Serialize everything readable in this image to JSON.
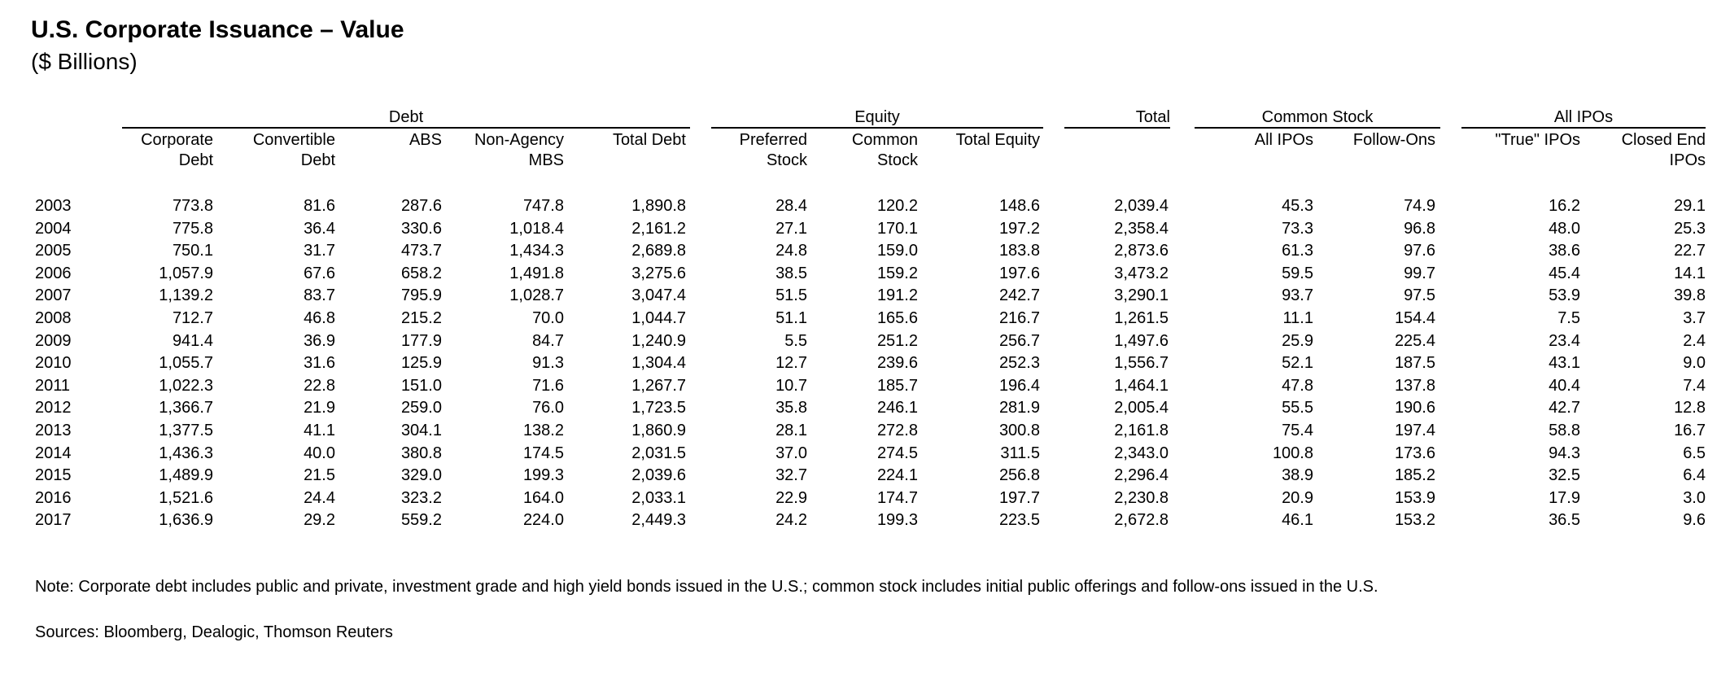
{
  "title": "U.S. Corporate Issuance – Value",
  "subtitle": "($ Billions)",
  "groups": {
    "debt": "Debt",
    "equity": "Equity",
    "total": "Total",
    "common_stock": "Common Stock",
    "all_ipos": "All IPOs"
  },
  "columns": [
    "Corporate\nDebt",
    "Convertible\nDebt",
    "ABS",
    "Non-Agency\nMBS",
    "Total Debt",
    "Preferred\nStock",
    "Common\nStock",
    "Total Equity",
    "",
    "All IPOs",
    "Follow-Ons",
    "\"True\" IPOs",
    "Closed End\nIPOs"
  ],
  "rows": [
    {
      "year": "2003",
      "values": [
        "773.8",
        "81.6",
        "287.6",
        "747.8",
        "1,890.8",
        "28.4",
        "120.2",
        "148.6",
        "2,039.4",
        "45.3",
        "74.9",
        "16.2",
        "29.1"
      ]
    },
    {
      "year": "2004",
      "values": [
        "775.8",
        "36.4",
        "330.6",
        "1,018.4",
        "2,161.2",
        "27.1",
        "170.1",
        "197.2",
        "2,358.4",
        "73.3",
        "96.8",
        "48.0",
        "25.3"
      ]
    },
    {
      "year": "2005",
      "values": [
        "750.1",
        "31.7",
        "473.7",
        "1,434.3",
        "2,689.8",
        "24.8",
        "159.0",
        "183.8",
        "2,873.6",
        "61.3",
        "97.6",
        "38.6",
        "22.7"
      ]
    },
    {
      "year": "2006",
      "values": [
        "1,057.9",
        "67.6",
        "658.2",
        "1,491.8",
        "3,275.6",
        "38.5",
        "159.2",
        "197.6",
        "3,473.2",
        "59.5",
        "99.7",
        "45.4",
        "14.1"
      ]
    },
    {
      "year": "2007",
      "values": [
        "1,139.2",
        "83.7",
        "795.9",
        "1,028.7",
        "3,047.4",
        "51.5",
        "191.2",
        "242.7",
        "3,290.1",
        "93.7",
        "97.5",
        "53.9",
        "39.8"
      ]
    },
    {
      "year": "2008",
      "values": [
        "712.7",
        "46.8",
        "215.2",
        "70.0",
        "1,044.7",
        "51.1",
        "165.6",
        "216.7",
        "1,261.5",
        "11.1",
        "154.4",
        "7.5",
        "3.7"
      ]
    },
    {
      "year": "2009",
      "values": [
        "941.4",
        "36.9",
        "177.9",
        "84.7",
        "1,240.9",
        "5.5",
        "251.2",
        "256.7",
        "1,497.6",
        "25.9",
        "225.4",
        "23.4",
        "2.4"
      ]
    },
    {
      "year": "2010",
      "values": [
        "1,055.7",
        "31.6",
        "125.9",
        "91.3",
        "1,304.4",
        "12.7",
        "239.6",
        "252.3",
        "1,556.7",
        "52.1",
        "187.5",
        "43.1",
        "9.0"
      ]
    },
    {
      "year": "2011",
      "values": [
        "1,022.3",
        "22.8",
        "151.0",
        "71.6",
        "1,267.7",
        "10.7",
        "185.7",
        "196.4",
        "1,464.1",
        "47.8",
        "137.8",
        "40.4",
        "7.4"
      ]
    },
    {
      "year": "2012",
      "values": [
        "1,366.7",
        "21.9",
        "259.0",
        "76.0",
        "1,723.5",
        "35.8",
        "246.1",
        "281.9",
        "2,005.4",
        "55.5",
        "190.6",
        "42.7",
        "12.8"
      ]
    },
    {
      "year": "2013",
      "values": [
        "1,377.5",
        "41.1",
        "304.1",
        "138.2",
        "1,860.9",
        "28.1",
        "272.8",
        "300.8",
        "2,161.8",
        "75.4",
        "197.4",
        "58.8",
        "16.7"
      ]
    },
    {
      "year": "2014",
      "values": [
        "1,436.3",
        "40.0",
        "380.8",
        "174.5",
        "2,031.5",
        "37.0",
        "274.5",
        "311.5",
        "2,343.0",
        "100.8",
        "173.6",
        "94.3",
        "6.5"
      ]
    },
    {
      "year": "2015",
      "values": [
        "1,489.9",
        "21.5",
        "329.0",
        "199.3",
        "2,039.6",
        "32.7",
        "224.1",
        "256.8",
        "2,296.4",
        "38.9",
        "185.2",
        "32.5",
        "6.4"
      ]
    },
    {
      "year": "2016",
      "values": [
        "1,521.6",
        "24.4",
        "323.2",
        "164.0",
        "2,033.1",
        "22.9",
        "174.7",
        "197.7",
        "2,230.8",
        "20.9",
        "153.9",
        "17.9",
        "3.0"
      ]
    },
    {
      "year": "2017",
      "values": [
        "1,636.9",
        "29.2",
        "559.2",
        "224.0",
        "2,449.3",
        "24.2",
        "199.3",
        "223.5",
        "2,672.8",
        "46.1",
        "153.2",
        "36.5",
        "9.6"
      ]
    }
  ],
  "note": "Note: Corporate debt includes public and private, investment grade and high yield bonds issued in the U.S.; common stock includes initial public offerings and follow-ons issued in the U.S.",
  "sources": "Sources: Bloomberg, Dealogic, Thomson Reuters"
}
